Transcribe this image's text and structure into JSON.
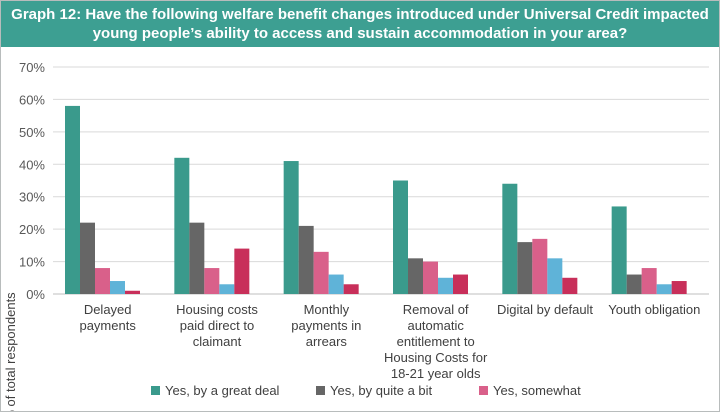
{
  "title": {
    "line1": "Graph 12: Have the following welfare benefit changes introduced under Universal Credit impacted",
    "line2": "young people’s ability to access and sustain accommodation in your area?"
  },
  "colors": {
    "header_bg": "#3d9f92",
    "series": [
      "#3a9a8c",
      "#666666",
      "#d9608a",
      "#5fb3d8",
      "#c82f5a"
    ]
  },
  "chart_data": {
    "type": "bar",
    "title": "Graph 12: Have the following welfare benefit changes introduced under Universal Credit impacted young people’s ability to access and sustain accommodation in your area?",
    "xlabel": "",
    "ylabel": "% of total respondents",
    "ylim": [
      0,
      70
    ],
    "yticks": [
      "0%",
      "10%",
      "20%",
      "30%",
      "40%",
      "50%",
      "60%",
      "70%"
    ],
    "grid": true,
    "legend_position": "bottom",
    "categories": [
      [
        "Delayed",
        "payments"
      ],
      [
        "Housing costs",
        "paid direct to",
        "claimant"
      ],
      [
        "Monthly",
        "payments in",
        "arrears"
      ],
      [
        "Removal of",
        "automatic",
        "entitlement to",
        "Housing Costs for",
        "18-21 year olds"
      ],
      [
        "Digital by default"
      ],
      [
        "Youth obligation"
      ]
    ],
    "series": [
      {
        "name": "Yes, by a great deal",
        "values": [
          58,
          42,
          41,
          35,
          34,
          27
        ]
      },
      {
        "name": "Yes, by quite a bit",
        "values": [
          22,
          22,
          21,
          11,
          16,
          6
        ]
      },
      {
        "name": "Yes, somewhat",
        "values": [
          8,
          8,
          13,
          10,
          17,
          8
        ]
      },
      {
        "name": "",
        "values": [
          4,
          3,
          6,
          5,
          11,
          3
        ]
      },
      {
        "name": "",
        "values": [
          1,
          14,
          3,
          6,
          5,
          4
        ]
      }
    ]
  }
}
